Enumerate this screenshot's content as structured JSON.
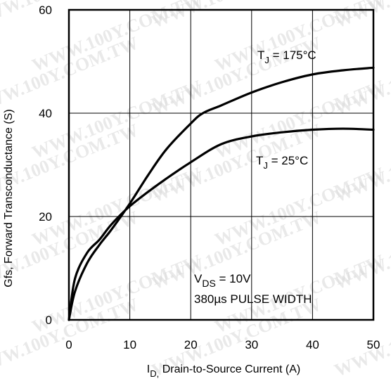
{
  "chart_data": {
    "type": "line",
    "xlabel_main": "I",
    "xlabel_sub": "D,",
    "xlabel_rest": " Drain-to-Source Current (A)",
    "ylabel": "Gfs, Forward Transconductance (S)",
    "xlim": [
      0,
      50
    ],
    "ylim": [
      0,
      60
    ],
    "xticks": [
      "0",
      "10",
      "20",
      "30",
      "40",
      "50"
    ],
    "yticks": [
      "0",
      "20",
      "40",
      "60"
    ],
    "grid": true,
    "series": [
      {
        "label_main": "T",
        "label_sub": "J",
        "label_rest": " = 175°C",
        "x": [
          0,
          1,
          3,
          5,
          7,
          10,
          13,
          16,
          20,
          22,
          25,
          30,
          35,
          40,
          45,
          50
        ],
        "y": [
          0,
          5.5,
          11,
          14.5,
          17.5,
          22.5,
          28,
          33,
          38,
          40,
          41.5,
          44,
          46,
          47.5,
          48.3,
          48.8
        ]
      },
      {
        "label_main": "T",
        "label_sub": "J",
        "label_rest": " = 25°C",
        "x": [
          0,
          1,
          3,
          5,
          7,
          10,
          15,
          20,
          25,
          30,
          35,
          40,
          45,
          50
        ],
        "y": [
          0,
          8,
          13,
          15.5,
          18.5,
          22,
          26.5,
          30.5,
          34,
          35.5,
          36.3,
          36.8,
          37,
          36.8
        ]
      }
    ],
    "annotation": {
      "line1_main": "V",
      "line1_sub": "DS",
      "line1_rest": " = 10V",
      "line2": "380µs PULSE WIDTH"
    },
    "watermark": "WWW.100Y.COM.TW"
  }
}
